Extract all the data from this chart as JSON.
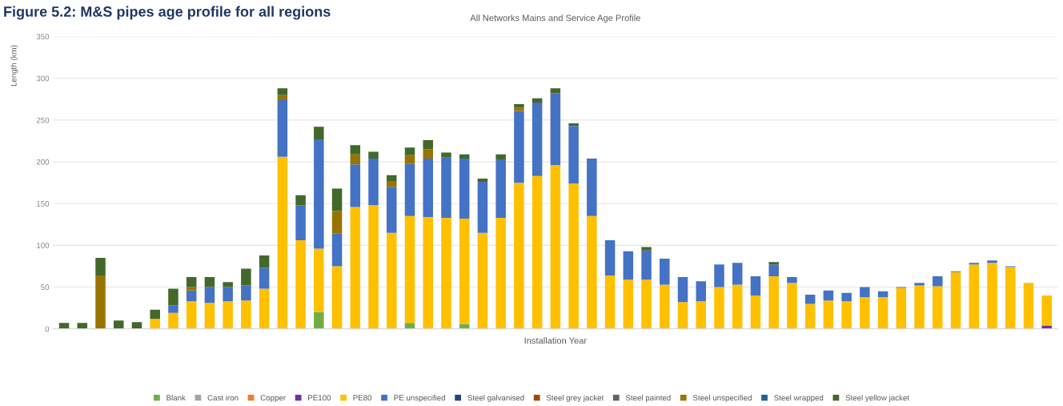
{
  "chart_data": {
    "type": "bar",
    "stacked": true,
    "title": "Figure 5.2: M&S pipes age profile for all regions",
    "subtitle": "All Networks Mains and Service Age Profile",
    "xlabel": "Installation Year",
    "ylabel": "Length (km)",
    "categories": [
      null,
      null,
      null,
      null,
      null,
      null,
      null,
      null,
      null,
      null,
      null,
      null,
      null,
      null,
      null,
      null,
      null,
      null,
      null,
      null,
      null,
      null,
      null,
      null,
      null,
      null,
      null,
      null,
      null,
      null,
      null,
      null,
      null,
      null,
      null,
      null,
      null,
      null,
      null,
      null,
      null,
      null,
      null,
      null,
      null,
      null,
      null,
      null,
      null,
      null,
      null,
      null,
      null,
      null,
      null
    ],
    "ylim": [
      0,
      350
    ],
    "yticks": [
      0,
      50,
      100,
      150,
      200,
      250,
      300,
      350
    ],
    "grid": "y",
    "legend": "bottom",
    "series": [
      {
        "name": "Blank",
        "color": "#70ad47",
        "values": [
          0,
          0,
          0,
          0,
          0,
          0,
          0,
          0,
          0,
          0,
          0,
          0,
          0,
          0,
          20,
          null,
          null,
          0,
          0,
          7,
          null,
          null,
          6,
          0,
          0,
          0,
          0,
          0,
          0,
          0,
          0,
          0,
          0,
          0,
          0,
          0,
          0,
          0,
          0,
          0,
          0,
          0,
          0,
          0,
          0,
          0,
          0,
          0,
          0,
          0,
          0,
          0,
          0,
          0,
          0
        ]
      },
      {
        "name": "Cast iron",
        "color": "#a5a5a5",
        "values": [
          0,
          0,
          0,
          0,
          0,
          0,
          0,
          0,
          0,
          0,
          0,
          0,
          0,
          0,
          0,
          0,
          0,
          0,
          0,
          0,
          0,
          0,
          0,
          0,
          0,
          0,
          0,
          0,
          0,
          0,
          0,
          0,
          0,
          0,
          0,
          0,
          0,
          0,
          0,
          0,
          0,
          0,
          0,
          0,
          0,
          0,
          0,
          0,
          0,
          0,
          0,
          0,
          0,
          0,
          0
        ]
      },
      {
        "name": "Copper",
        "color": "#ed7d31",
        "values": [
          0,
          0,
          0,
          0,
          0,
          0,
          0,
          0,
          0,
          0,
          0,
          0,
          0,
          0,
          0,
          0,
          0,
          0,
          0,
          0,
          0,
          0,
          0,
          0,
          0,
          0,
          0,
          0,
          0,
          0,
          0,
          0,
          0,
          0,
          0,
          0,
          0,
          0,
          0,
          0,
          0,
          0,
          0,
          0,
          0,
          0,
          0,
          0,
          0,
          0,
          0,
          0,
          0,
          0,
          0
        ]
      },
      {
        "name": "PE100",
        "color": "#7030a0",
        "values": [
          0,
          0,
          0,
          0,
          0,
          0,
          0,
          0,
          0,
          0,
          0,
          0,
          0,
          0,
          0,
          0,
          0,
          0,
          0,
          0,
          0,
          0,
          0,
          0,
          0,
          0,
          0,
          0,
          0,
          0,
          0,
          0,
          0,
          0,
          0,
          0,
          0,
          0,
          0,
          0,
          0,
          0,
          0,
          0,
          0,
          0,
          0,
          0,
          0,
          0,
          0,
          0,
          0,
          0,
          4
        ]
      },
      {
        "name": "PE80",
        "color": "#ffc000",
        "values": [
          0,
          0,
          0,
          0,
          0,
          12,
          19,
          33,
          31,
          33,
          34,
          48,
          206,
          106,
          76,
          75,
          146,
          148,
          115,
          128,
          134,
          133,
          126,
          115,
          133,
          175,
          183,
          196,
          174,
          135,
          64,
          59,
          59,
          53,
          32,
          33,
          50,
          53,
          40,
          63,
          55,
          30,
          34,
          33,
          38,
          38,
          49,
          52,
          51,
          68,
          77,
          79,
          74,
          55,
          36
        ]
      },
      {
        "name": "PE unspecified",
        "color": "#4472c4",
        "values": [
          0,
          0,
          0,
          0,
          0,
          0,
          9,
          13,
          19,
          17,
          18,
          25,
          68,
          42,
          131,
          39,
          51,
          56,
          55,
          63,
          70,
          72,
          72,
          61,
          70,
          86,
          88,
          86,
          69,
          69,
          42,
          34,
          35,
          31,
          30,
          24,
          27,
          26,
          23,
          14,
          7,
          11,
          12,
          10,
          12,
          7,
          1,
          3,
          12,
          1,
          2,
          3,
          1,
          0,
          0
        ]
      },
      {
        "name": "Steel galvanised",
        "color": "#264478",
        "values": [
          0,
          0,
          0,
          0,
          0,
          0,
          0,
          0,
          0,
          0,
          0,
          0,
          0,
          0,
          0,
          0,
          0,
          0,
          0,
          0,
          0,
          0,
          0,
          0,
          0,
          0,
          0,
          0,
          0,
          0,
          0,
          0,
          0,
          0,
          0,
          0,
          0,
          0,
          0,
          0,
          0,
          0,
          0,
          0,
          0,
          0,
          0,
          0,
          0,
          0,
          0,
          0,
          0,
          0,
          0
        ]
      },
      {
        "name": "Steel grey jacket",
        "color": "#9e480e",
        "values": [
          0,
          0,
          0,
          0,
          0,
          0,
          0,
          0,
          0,
          0,
          0,
          0,
          0,
          0,
          0,
          0,
          0,
          0,
          0,
          0,
          0,
          0,
          0,
          0,
          0,
          0,
          0,
          0,
          0,
          0,
          0,
          0,
          0,
          0,
          0,
          0,
          0,
          0,
          0,
          0,
          0,
          0,
          0,
          0,
          0,
          0,
          0,
          0,
          0,
          0,
          0,
          0,
          0,
          0,
          0
        ]
      },
      {
        "name": "Steel painted",
        "color": "#636363",
        "values": [
          0,
          0,
          0,
          0,
          0,
          0,
          0,
          0,
          0,
          0,
          0,
          0,
          0,
          0,
          0,
          0,
          0,
          0,
          0,
          0,
          0,
          0,
          0,
          0,
          0,
          0,
          0,
          0,
          0,
          0,
          0,
          0,
          0,
          0,
          0,
          0,
          0,
          0,
          0,
          0,
          0,
          0,
          0,
          0,
          0,
          0,
          0,
          0,
          0,
          0,
          0,
          0,
          0,
          0,
          0
        ]
      },
      {
        "name": "Steel unspecified",
        "color": "#997300",
        "values": [
          0,
          0,
          64,
          0,
          0,
          0,
          0,
          4,
          0,
          0,
          0,
          0,
          6,
          0,
          0,
          27,
          12,
          0,
          7,
          10,
          11,
          0,
          0,
          0,
          0,
          4,
          0,
          0,
          0,
          0,
          0,
          0,
          0,
          0,
          0,
          0,
          0,
          0,
          0,
          0,
          0,
          0,
          0,
          0,
          0,
          0,
          0,
          0,
          0,
          0,
          0,
          0,
          0,
          0,
          0
        ]
      },
      {
        "name": "Steel wrapped",
        "color": "#255e91",
        "values": [
          0,
          0,
          0,
          0,
          0,
          0,
          0,
          0,
          0,
          0,
          0,
          0,
          0,
          0,
          0,
          0,
          0,
          0,
          0,
          0,
          0,
          0,
          0,
          0,
          0,
          0,
          0,
          0,
          0,
          0,
          0,
          0,
          0,
          0,
          0,
          0,
          0,
          0,
          0,
          0,
          0,
          0,
          0,
          0,
          0,
          0,
          0,
          0,
          0,
          0,
          0,
          0,
          0,
          0,
          0
        ]
      },
      {
        "name": "Steel yellow jacket",
        "color": "#43682b",
        "values": [
          7,
          7,
          21,
          10,
          8,
          11,
          20,
          12,
          12,
          6,
          20,
          15,
          8,
          12,
          15,
          27,
          11,
          8,
          7,
          9,
          11,
          6,
          5,
          4,
          6,
          4,
          5,
          6,
          3,
          0,
          0,
          0,
          4,
          0,
          0,
          0,
          0,
          0,
          0,
          3,
          0,
          0,
          0,
          0,
          0,
          0,
          0,
          0,
          0,
          0,
          0,
          0,
          0,
          0,
          0
        ]
      }
    ]
  }
}
